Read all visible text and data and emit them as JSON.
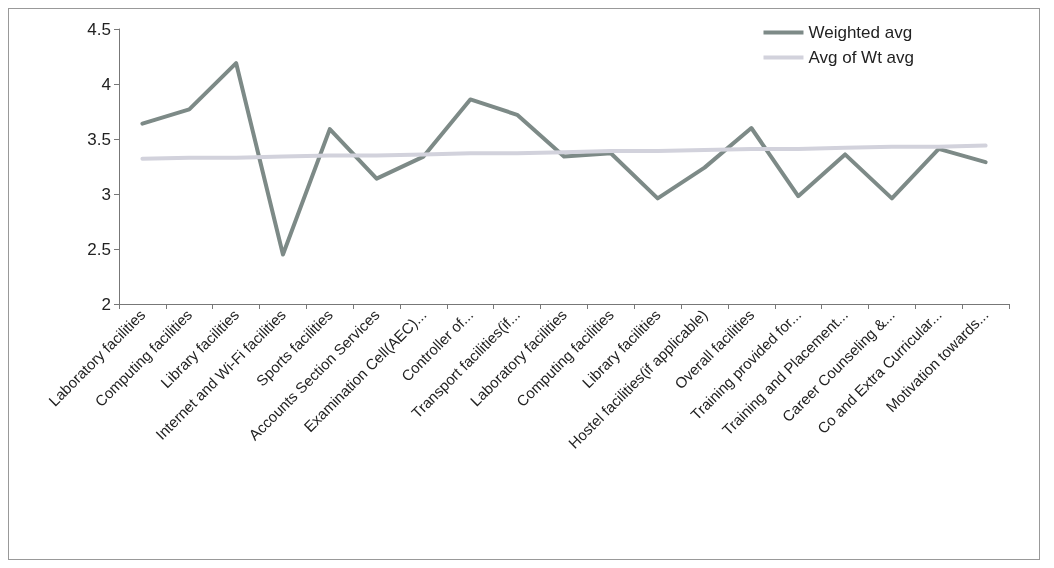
{
  "chart_data": {
    "type": "line",
    "categories": [
      "Laboratory facilities",
      "Computing facilities",
      "Library facilities",
      "Internet and Wi-Fi facilities",
      "Sports facilities",
      "Accounts Section Services",
      "Examination Cell(AEC)...",
      "Controller of...",
      "Transport facilities(if...",
      "Laboratory facilities",
      "Computing facilities",
      "Library facilities",
      "Hostel facilities(if applicable)",
      "Overall facilities",
      "Training provided for...",
      "Training and Placement...",
      "Career Counseling &...",
      "Co and Extra Curricular...",
      "Motivation towards..."
    ],
    "series": [
      {
        "name": "Weighted avg",
        "color": "#7d8a87",
        "values": [
          3.64,
          3.77,
          4.19,
          2.45,
          3.59,
          3.14,
          3.34,
          3.86,
          3.72,
          3.34,
          3.37,
          2.96,
          3.24,
          3.6,
          2.98,
          3.36,
          2.96,
          3.41,
          3.29
        ]
      },
      {
        "name": "Avg of Wt avg",
        "color": "#d2d2dc",
        "values": [
          3.32,
          3.33,
          3.33,
          3.34,
          3.35,
          3.35,
          3.36,
          3.37,
          3.37,
          3.38,
          3.39,
          3.39,
          3.4,
          3.41,
          3.41,
          3.42,
          3.43,
          3.43,
          3.44
        ]
      }
    ],
    "ylim": [
      2,
      4.5
    ],
    "yticks": [
      2,
      2.5,
      3,
      3.5,
      4,
      4.5
    ],
    "grid": false,
    "legend": "top right",
    "marker": "none",
    "line_style": "solid"
  }
}
